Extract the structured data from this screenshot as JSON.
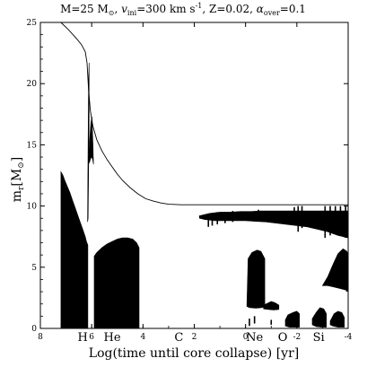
{
  "chart_data": {
    "type": "area",
    "title": {
      "mass_label": "M=25 M",
      "mass_unit_sub": "⊙",
      "velocity_prefix": ", ",
      "velocity_symbol": "v",
      "velocity_sub": "ini",
      "velocity_value": "=300 km s",
      "velocity_exp": "-1",
      "metallicity": ", Z=0.02, ",
      "alpha_symbol": "α",
      "alpha_sub": "over",
      "alpha_value": "=0.1"
    },
    "xlabel": "Log(time until core collapse) [yr]",
    "ylabel": {
      "symbol": "m",
      "sub": "r",
      "unit": "[M",
      "unit_sub": "⊙",
      "close": "]"
    },
    "xlim": [
      8,
      -4
    ],
    "ylim": [
      0,
      25
    ],
    "x_ticks": [
      {
        "value": 8,
        "label": "8"
      },
      {
        "value": 6,
        "label": "6"
      },
      {
        "value": 4,
        "label": "4"
      },
      {
        "value": 2,
        "label": "2"
      },
      {
        "value": 0,
        "label": "0"
      },
      {
        "value": -2,
        "label": "-2"
      },
      {
        "value": -4,
        "label": "-4"
      }
    ],
    "y_ticks": [
      {
        "value": 0,
        "label": "0"
      },
      {
        "value": 5,
        "label": "5"
      },
      {
        "value": 10,
        "label": "10"
      },
      {
        "value": 15,
        "label": "15"
      },
      {
        "value": 20,
        "label": "20"
      },
      {
        "value": 25,
        "label": "25"
      }
    ],
    "phase_labels": [
      {
        "label": "H",
        "x": 6.35
      },
      {
        "label": "He",
        "x": 5.2
      },
      {
        "label": "C",
        "x": 2.6
      },
      {
        "label": "Ne",
        "x": -0.35
      },
      {
        "label": "O",
        "x": -1.45
      },
      {
        "label": "Si",
        "x": -2.85
      }
    ],
    "total_mass": {
      "x": [
        7.2,
        6.9,
        6.6,
        6.4,
        6.25,
        6.18,
        6.12,
        6.05,
        5.95,
        5.8,
        5.6,
        5.4,
        5.2,
        5.0,
        4.8,
        4.5,
        4.2,
        3.9,
        3.6,
        3.3,
        3.0,
        2.5,
        2.0,
        1.0,
        0.0,
        -1.0,
        -2.0,
        -3.0,
        -4.0
      ],
      "y": [
        25.0,
        24.4,
        23.7,
        23.2,
        22.6,
        21.7,
        19.5,
        17.8,
        16.5,
        15.4,
        14.5,
        13.8,
        13.2,
        12.6,
        12.1,
        11.5,
        11.0,
        10.6,
        10.4,
        10.25,
        10.15,
        10.1,
        10.1,
        10.1,
        10.1,
        10.1,
        10.1,
        10.1,
        10.1
      ]
    },
    "convective_regions": [
      {
        "name": "H-burning convective core",
        "x": [
          7.2,
          7.12,
          7.05,
          6.95,
          6.85,
          6.75,
          6.65,
          6.55,
          6.45,
          6.35,
          6.25,
          6.2,
          6.15,
          6.15,
          7.2
        ],
        "y": [
          12.8,
          12.5,
          12.1,
          11.6,
          11.1,
          10.5,
          9.9,
          9.3,
          8.7,
          8.1,
          7.5,
          7.1,
          6.8,
          0.0,
          0.0
        ]
      },
      {
        "name": "H-burning shell",
        "x": [
          6.13,
          6.1,
          6.07,
          6.03,
          5.99,
          5.95,
          5.93,
          5.93,
          5.96,
          6.0,
          6.04,
          6.08,
          6.11
        ],
        "y": [
          13.5,
          14.6,
          15.7,
          16.8,
          17.3,
          15.0,
          13.4,
          13.4,
          13.8,
          14.0,
          13.9,
          13.6,
          13.5
        ]
      },
      {
        "name": "H-shell spike",
        "x": [
          6.16,
          6.14,
          6.12,
          6.1,
          6.1,
          6.12,
          6.14,
          6.16
        ],
        "y": [
          9.0,
          15.5,
          20.3,
          21.7,
          17.2,
          12.5,
          9.0,
          8.7
        ]
      },
      {
        "name": "He-burning convective core",
        "x": [
          5.9,
          5.8,
          5.6,
          5.4,
          5.2,
          5.0,
          4.8,
          4.6,
          4.4,
          4.25,
          4.15,
          4.15,
          5.9
        ],
        "y": [
          5.9,
          6.2,
          6.6,
          6.9,
          7.1,
          7.3,
          7.4,
          7.4,
          7.3,
          7.0,
          6.6,
          0.0,
          0.0
        ]
      },
      {
        "name": "convective envelope",
        "x": [
          1.8,
          1.4,
          1.0,
          0.6,
          0.2,
          -0.2,
          -0.6,
          -1.0,
          -1.4,
          -1.8,
          -2.2,
          -2.6,
          -3.0,
          -3.4,
          -3.8,
          -4.0,
          -4.0,
          -3.6,
          -3.2,
          -2.8,
          -2.4,
          -2.0,
          -1.6,
          -1.2,
          -0.8,
          -0.4,
          0.0,
          0.4,
          0.8,
          1.2,
          1.6,
          1.8
        ],
        "y": [
          9.2,
          9.4,
          9.5,
          9.5,
          9.55,
          9.55,
          9.6,
          9.6,
          9.6,
          9.6,
          9.6,
          9.6,
          9.6,
          9.6,
          9.6,
          9.6,
          7.4,
          7.6,
          7.9,
          8.1,
          8.3,
          8.4,
          8.5,
          8.6,
          8.7,
          8.75,
          8.8,
          8.8,
          8.8,
          8.8,
          8.9,
          9.0
        ]
      },
      {
        "name": "Ne/O convective shell",
        "x": [
          -0.1,
          -0.25,
          -0.45,
          -0.6,
          -0.75,
          -0.75,
          -0.65,
          -0.4,
          -0.15,
          -0.05
        ],
        "y": [
          5.7,
          6.2,
          6.4,
          6.3,
          5.7,
          1.8,
          1.7,
          1.65,
          1.7,
          1.8
        ]
      },
      {
        "name": "O-shell outer",
        "x": [
          -3.0,
          -3.2,
          -3.4,
          -3.6,
          -3.8,
          -3.95,
          -4.0,
          -4.0,
          -3.95,
          -3.8,
          -3.6,
          -3.4,
          -3.2
        ],
        "y": [
          3.5,
          4.2,
          5.2,
          6.1,
          6.5,
          6.3,
          6.0,
          3.3,
          3.1,
          3.2,
          3.3,
          3.4,
          3.5
        ]
      },
      {
        "name": "C-shell small",
        "x": [
          -0.7,
          -0.85,
          -1.0,
          -1.15,
          -1.3,
          -1.3,
          -1.1,
          -0.9,
          -0.7
        ],
        "y": [
          1.9,
          2.05,
          2.2,
          2.1,
          1.9,
          1.55,
          1.5,
          1.55,
          1.6
        ]
      },
      {
        "name": "core shell 1",
        "x": [
          -1.55,
          -1.65,
          -1.85,
          -2.0,
          -2.1,
          -2.1,
          -1.9,
          -1.7,
          -1.55
        ],
        "y": [
          0.7,
          1.1,
          1.3,
          1.4,
          1.2,
          0.1,
          0.1,
          0.1,
          0.2
        ]
      },
      {
        "name": "core shell 2",
        "x": [
          -2.6,
          -2.75,
          -2.9,
          -3.05,
          -3.15,
          -3.15,
          -2.95,
          -2.75,
          -2.6
        ],
        "y": [
          0.8,
          1.3,
          1.7,
          1.6,
          1.2,
          0.1,
          0.1,
          0.15,
          0.3
        ]
      },
      {
        "name": "core shell 3",
        "x": [
          -3.3,
          -3.45,
          -3.6,
          -3.75,
          -3.85,
          -3.85,
          -3.6,
          -3.4,
          -3.3
        ],
        "y": [
          0.6,
          1.2,
          1.4,
          1.3,
          0.9,
          0.1,
          0.1,
          0.2,
          0.3
        ]
      }
    ],
    "convective_bars": [
      {
        "x": 1.45,
        "y0": 8.3,
        "y1": 9.3
      },
      {
        "x": 1.3,
        "y0": 8.4,
        "y1": 9.4
      },
      {
        "x": 1.1,
        "y0": 8.5,
        "y1": 9.5
      },
      {
        "x": 0.8,
        "y0": 8.6,
        "y1": 9.5
      },
      {
        "x": 0.5,
        "y0": 8.7,
        "y1": 9.6
      },
      {
        "x": -0.5,
        "y0": 8.8,
        "y1": 9.7
      },
      {
        "x": -1.9,
        "y0": 8.6,
        "y1": 9.9
      },
      {
        "x": -2.05,
        "y0": 7.9,
        "y1": 10.0
      },
      {
        "x": -2.2,
        "y0": 8.2,
        "y1": 10.0
      },
      {
        "x": -3.1,
        "y0": 7.4,
        "y1": 10.0
      },
      {
        "x": -3.3,
        "y0": 7.6,
        "y1": 10.0
      },
      {
        "x": -3.5,
        "y0": 8.4,
        "y1": 10.0
      },
      {
        "x": -3.7,
        "y0": 8.0,
        "y1": 10.0
      },
      {
        "x": -3.9,
        "y0": 7.4,
        "y1": 10.0
      },
      {
        "x": -0.15,
        "y0": 0.2,
        "y1": 0.8
      },
      {
        "x": -0.35,
        "y0": 0.4,
        "y1": 1.0
      },
      {
        "x": -1.0,
        "y0": 0.3,
        "y1": 0.7
      },
      {
        "x": -3.95,
        "y0": 3.0,
        "y1": 3.7
      }
    ],
    "grid": false,
    "legend": "none"
  }
}
